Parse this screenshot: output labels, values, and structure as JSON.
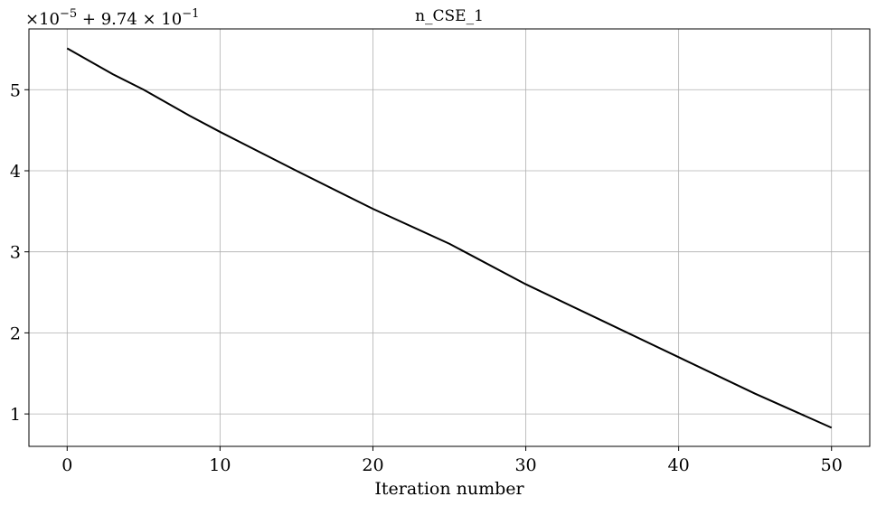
{
  "chart_data": {
    "type": "line",
    "title": "n_CSE_1",
    "xlabel": "Iteration number",
    "ylabel": "",
    "y_offset_text": {
      "times": "×10",
      "exp": "−5",
      "plus": " + 9.74 × 10",
      "exp2": "−1"
    },
    "xlim": [
      -2.5,
      52.5
    ],
    "ylim": [
      0.6,
      5.75
    ],
    "x_ticks": [
      0,
      10,
      20,
      30,
      40,
      50
    ],
    "x_tick_labels": [
      "0",
      "10",
      "20",
      "30",
      "40",
      "50"
    ],
    "y_ticks": [
      1,
      2,
      3,
      4,
      5
    ],
    "y_tick_labels": [
      "1",
      "2",
      "3",
      "4",
      "5"
    ],
    "grid": true,
    "line_color": "#000000",
    "grid_color": "#b0b0b0",
    "series": [
      {
        "x": [
          0,
          3,
          5,
          8,
          10,
          15,
          20,
          25,
          30,
          35,
          40,
          45,
          50
        ],
        "values": [
          5.51,
          5.19,
          5.0,
          4.68,
          4.48,
          4.0,
          3.53,
          3.1,
          2.6,
          2.15,
          1.7,
          1.25,
          0.83
        ]
      }
    ]
  }
}
